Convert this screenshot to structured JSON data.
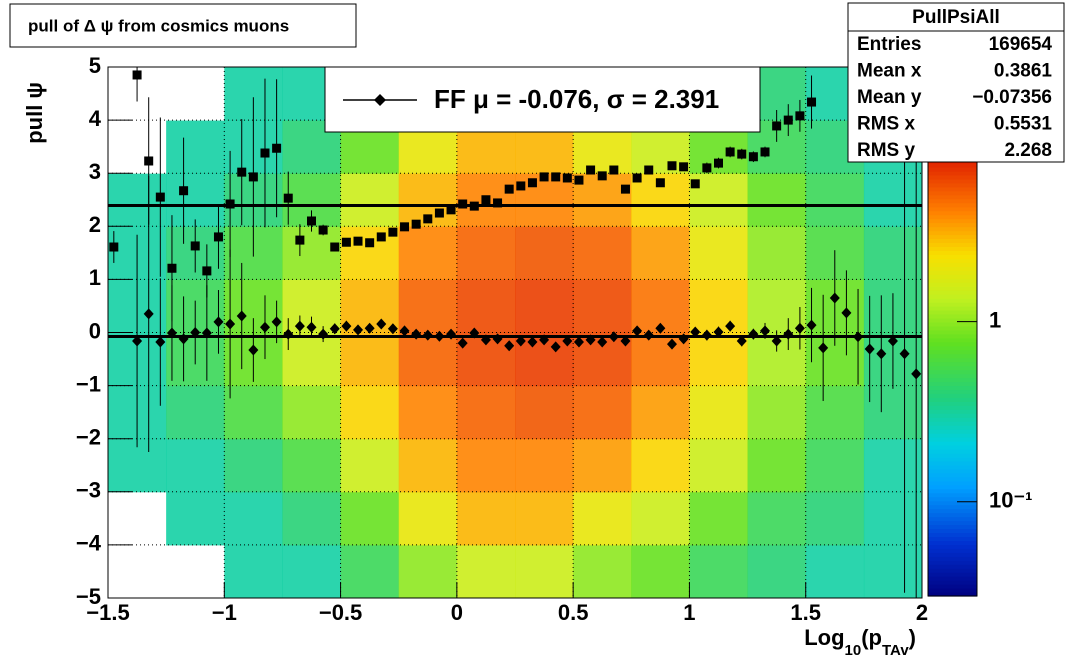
{
  "chart_data": {
    "type": "scatter",
    "title": "pull of Δ ψ from cosmics muons",
    "y_label": "pull ψ",
    "x_label": [
      "Log",
      "10",
      "(p",
      "TAv",
      ")"
    ],
    "xlim": [
      -1.5,
      2
    ],
    "ylim": [
      -5,
      5
    ],
    "xticks": [
      {
        "value": -1.5,
        "label": "−1.5"
      },
      {
        "value": -1,
        "label": "−1"
      },
      {
        "value": -0.5,
        "label": "−0.5"
      },
      0,
      0.5,
      1,
      1.5,
      2
    ],
    "yticks": [
      {
        "value": -5,
        "label": "−5"
      },
      {
        "value": -4,
        "label": "−4"
      },
      {
        "value": -3,
        "label": "−3"
      },
      {
        "value": -2,
        "label": "−2"
      },
      {
        "value": -1,
        "label": "−1"
      },
      0,
      1,
      2,
      3,
      4,
      5
    ],
    "grid": true,
    "zlim": [
      0.03,
      8
    ],
    "zscale": "log",
    "zticks": [
      1,
      {
        "value": 0.1,
        "label": "10⁻¹"
      }
    ],
    "heatmap": {
      "xbins": [
        -1.5,
        -1.25,
        -1,
        -0.75,
        -0.5,
        -0.25,
        0,
        0.25,
        0.5,
        0.75,
        1,
        1.25,
        1.5,
        1.75,
        2
      ],
      "ybins": [
        -5,
        -4,
        -3,
        -2,
        -1,
        0,
        1,
        2,
        3,
        4,
        5
      ],
      "z": [
        [
          0,
          0,
          0.3,
          0.3,
          0.5,
          1,
          1.5,
          1.5,
          1,
          0.8,
          0.5,
          0.4,
          0.3,
          0.3
        ],
        [
          0,
          0.3,
          0.3,
          0.4,
          0.8,
          2,
          3,
          3,
          2,
          1.5,
          0.8,
          0.5,
          0.4,
          0.3
        ],
        [
          0.3,
          0.3,
          0.4,
          0.6,
          1.5,
          3,
          4,
          4,
          3.5,
          2.5,
          1.5,
          0.8,
          0.5,
          0.3
        ],
        [
          0.3,
          0.4,
          0.6,
          1,
          2.5,
          4,
          5,
          5.5,
          5,
          3.5,
          2,
          1,
          0.6,
          0.4
        ],
        [
          0.3,
          0.5,
          0.8,
          1.5,
          3,
          5,
          6,
          6.5,
          6,
          4.5,
          2.5,
          1.2,
          0.8,
          0.4
        ],
        [
          0.3,
          0.5,
          0.8,
          1.5,
          3,
          5,
          6,
          6.5,
          6,
          4.5,
          2.5,
          1.2,
          0.8,
          0.4
        ],
        [
          0.3,
          0.4,
          0.6,
          1,
          2.5,
          4,
          5,
          5.5,
          5,
          3.5,
          2,
          1,
          0.6,
          0.4
        ],
        [
          0.3,
          0.3,
          0.4,
          0.6,
          1.5,
          3,
          4,
          4,
          3.5,
          2.5,
          1.5,
          0.8,
          0.5,
          0.3
        ],
        [
          0,
          0.3,
          0.3,
          0.4,
          0.8,
          2,
          3,
          3,
          2,
          1.5,
          0.8,
          0.5,
          0.4,
          0.3
        ],
        [
          0,
          0,
          0.3,
          0.3,
          0.5,
          1,
          1.5,
          1.5,
          1,
          0.8,
          0.5,
          0.4,
          0.3,
          0.3
        ]
      ]
    },
    "x": [
      -1.475,
      -1.425,
      -1.375,
      -1.325,
      -1.275,
      -1.225,
      -1.175,
      -1.125,
      -1.075,
      -1.025,
      -0.975,
      -0.925,
      -0.875,
      -0.825,
      -0.775,
      -0.725,
      -0.675,
      -0.625,
      -0.575,
      -0.525,
      -0.475,
      -0.425,
      -0.375,
      -0.325,
      -0.275,
      -0.225,
      -0.175,
      -0.125,
      -0.075,
      -0.025,
      0.025,
      0.075,
      0.125,
      0.175,
      0.225,
      0.275,
      0.325,
      0.375,
      0.425,
      0.475,
      0.525,
      0.575,
      0.625,
      0.675,
      0.725,
      0.775,
      0.825,
      0.875,
      0.925,
      0.975,
      1.025,
      1.075,
      1.125,
      1.175,
      1.225,
      1.275,
      1.325,
      1.375,
      1.425,
      1.475,
      1.525,
      1.575,
      1.625,
      1.675,
      1.725,
      1.775,
      1.825,
      1.875,
      1.925,
      1.975
    ],
    "series": [
      {
        "marker": "square",
        "color": "#000000",
        "values": [
          1.61,
          null,
          4.85,
          3.23,
          2.55,
          1.21,
          2.67,
          1.63,
          1.16,
          1.8,
          2.42,
          3.02,
          2.93,
          3.38,
          3.47,
          2.53,
          1.74,
          2.1,
          1.93,
          1.61,
          1.7,
          1.72,
          1.69,
          1.8,
          1.89,
          1.99,
          2.04,
          2.14,
          2.25,
          2.31,
          2.42,
          2.38,
          2.5,
          2.44,
          2.7,
          2.76,
          2.82,
          2.93,
          2.93,
          2.91,
          2.87,
          3.06,
          2.95,
          3.06,
          2.7,
          2.91,
          3.06,
          2.82,
          3.14,
          3.12,
          2.8,
          3.1,
          3.19,
          3.4,
          3.36,
          3.31,
          3.4,
          3.89,
          4.0,
          4.08,
          4.34,
          null,
          null,
          null,
          null,
          null,
          null,
          null,
          null,
          null
        ],
        "errors": [
          0.3,
          null,
          0.5,
          1.2,
          1.5,
          1.0,
          1.0,
          0.5,
          0.5,
          0.6,
          1.0,
          1.0,
          1.5,
          1.4,
          1.3,
          0.5,
          0.3,
          0.2,
          0.1,
          0.05,
          0.05,
          0.05,
          0.05,
          0.05,
          0.05,
          0.05,
          0.05,
          0.05,
          0.05,
          0.05,
          0.05,
          0.05,
          0.05,
          0.05,
          0.05,
          0.05,
          0.05,
          0.05,
          0.05,
          0.05,
          0.05,
          0.05,
          0.05,
          0.05,
          0.05,
          0.05,
          0.05,
          0.05,
          0.05,
          0.05,
          0.05,
          0.1,
          0.1,
          0.1,
          0.1,
          0.1,
          0.1,
          0.3,
          0.3,
          0.3,
          0.5,
          null,
          null,
          null,
          null,
          null,
          null,
          null,
          null,
          null
        ]
      },
      {
        "marker": "diamond",
        "color": "#000000",
        "values": [
          null,
          null,
          -0.16,
          0.35,
          -0.18,
          -0.01,
          -0.12,
          0,
          -0.01,
          0.2,
          0.16,
          0.31,
          -0.33,
          0.1,
          0.2,
          -0.03,
          0.12,
          0.1,
          -0.03,
          0.07,
          0.12,
          0.05,
          0.08,
          0.16,
          0.07,
          0.03,
          -0.03,
          -0.05,
          -0.07,
          -0.03,
          -0.2,
          -0.01,
          -0.14,
          -0.12,
          -0.25,
          -0.16,
          -0.18,
          -0.14,
          -0.27,
          -0.16,
          -0.18,
          -0.14,
          -0.18,
          -0.08,
          -0.16,
          0.03,
          -0.05,
          0.08,
          -0.22,
          -0.12,
          0.01,
          -0.05,
          0.01,
          0.12,
          -0.16,
          -0.03,
          0.03,
          -0.16,
          -0.03,
          0.08,
          0.14,
          -0.29,
          0.65,
          0.37,
          -0.08,
          -0.31,
          -0.4,
          -0.16,
          -0.4,
          -0.78
        ],
        "errors": [
          null,
          null,
          2.0,
          2.6,
          1.2,
          0.9,
          0.8,
          0.6,
          0.9,
          0.6,
          1.4,
          1.0,
          0.6,
          0.6,
          0.4,
          0.3,
          0.2,
          0.2,
          0.15,
          0.1,
          0.1,
          0.05,
          0.05,
          0.05,
          0.05,
          0.05,
          0.05,
          0.05,
          0.05,
          0.05,
          0.05,
          0.05,
          0.05,
          0.05,
          0.05,
          0.05,
          0.05,
          0.05,
          0.05,
          0.05,
          0.05,
          0.05,
          0.05,
          0.05,
          0.05,
          0.05,
          0.05,
          0.05,
          0.05,
          0.05,
          0.05,
          0.1,
          0.1,
          0.1,
          0.1,
          0.1,
          0.15,
          0.2,
          0.3,
          0.4,
          0.7,
          1.0,
          0.9,
          0.8,
          0.9,
          1.0,
          1.1,
          0.9,
          4.5,
          5.0
        ]
      }
    ],
    "fit_mean": -0.076,
    "fit_sigma": 2.391,
    "legend": "FF μ = -0.076, σ =   2.391",
    "stats": {
      "title": "PullPsiAll",
      "rows": [
        [
          "Entries",
          "169654"
        ],
        [
          "Mean x",
          "0.3861"
        ],
        [
          "Mean y",
          "−0.07356"
        ],
        [
          "RMS x",
          "0.5531"
        ],
        [
          "RMS y",
          "2.268"
        ]
      ]
    }
  }
}
